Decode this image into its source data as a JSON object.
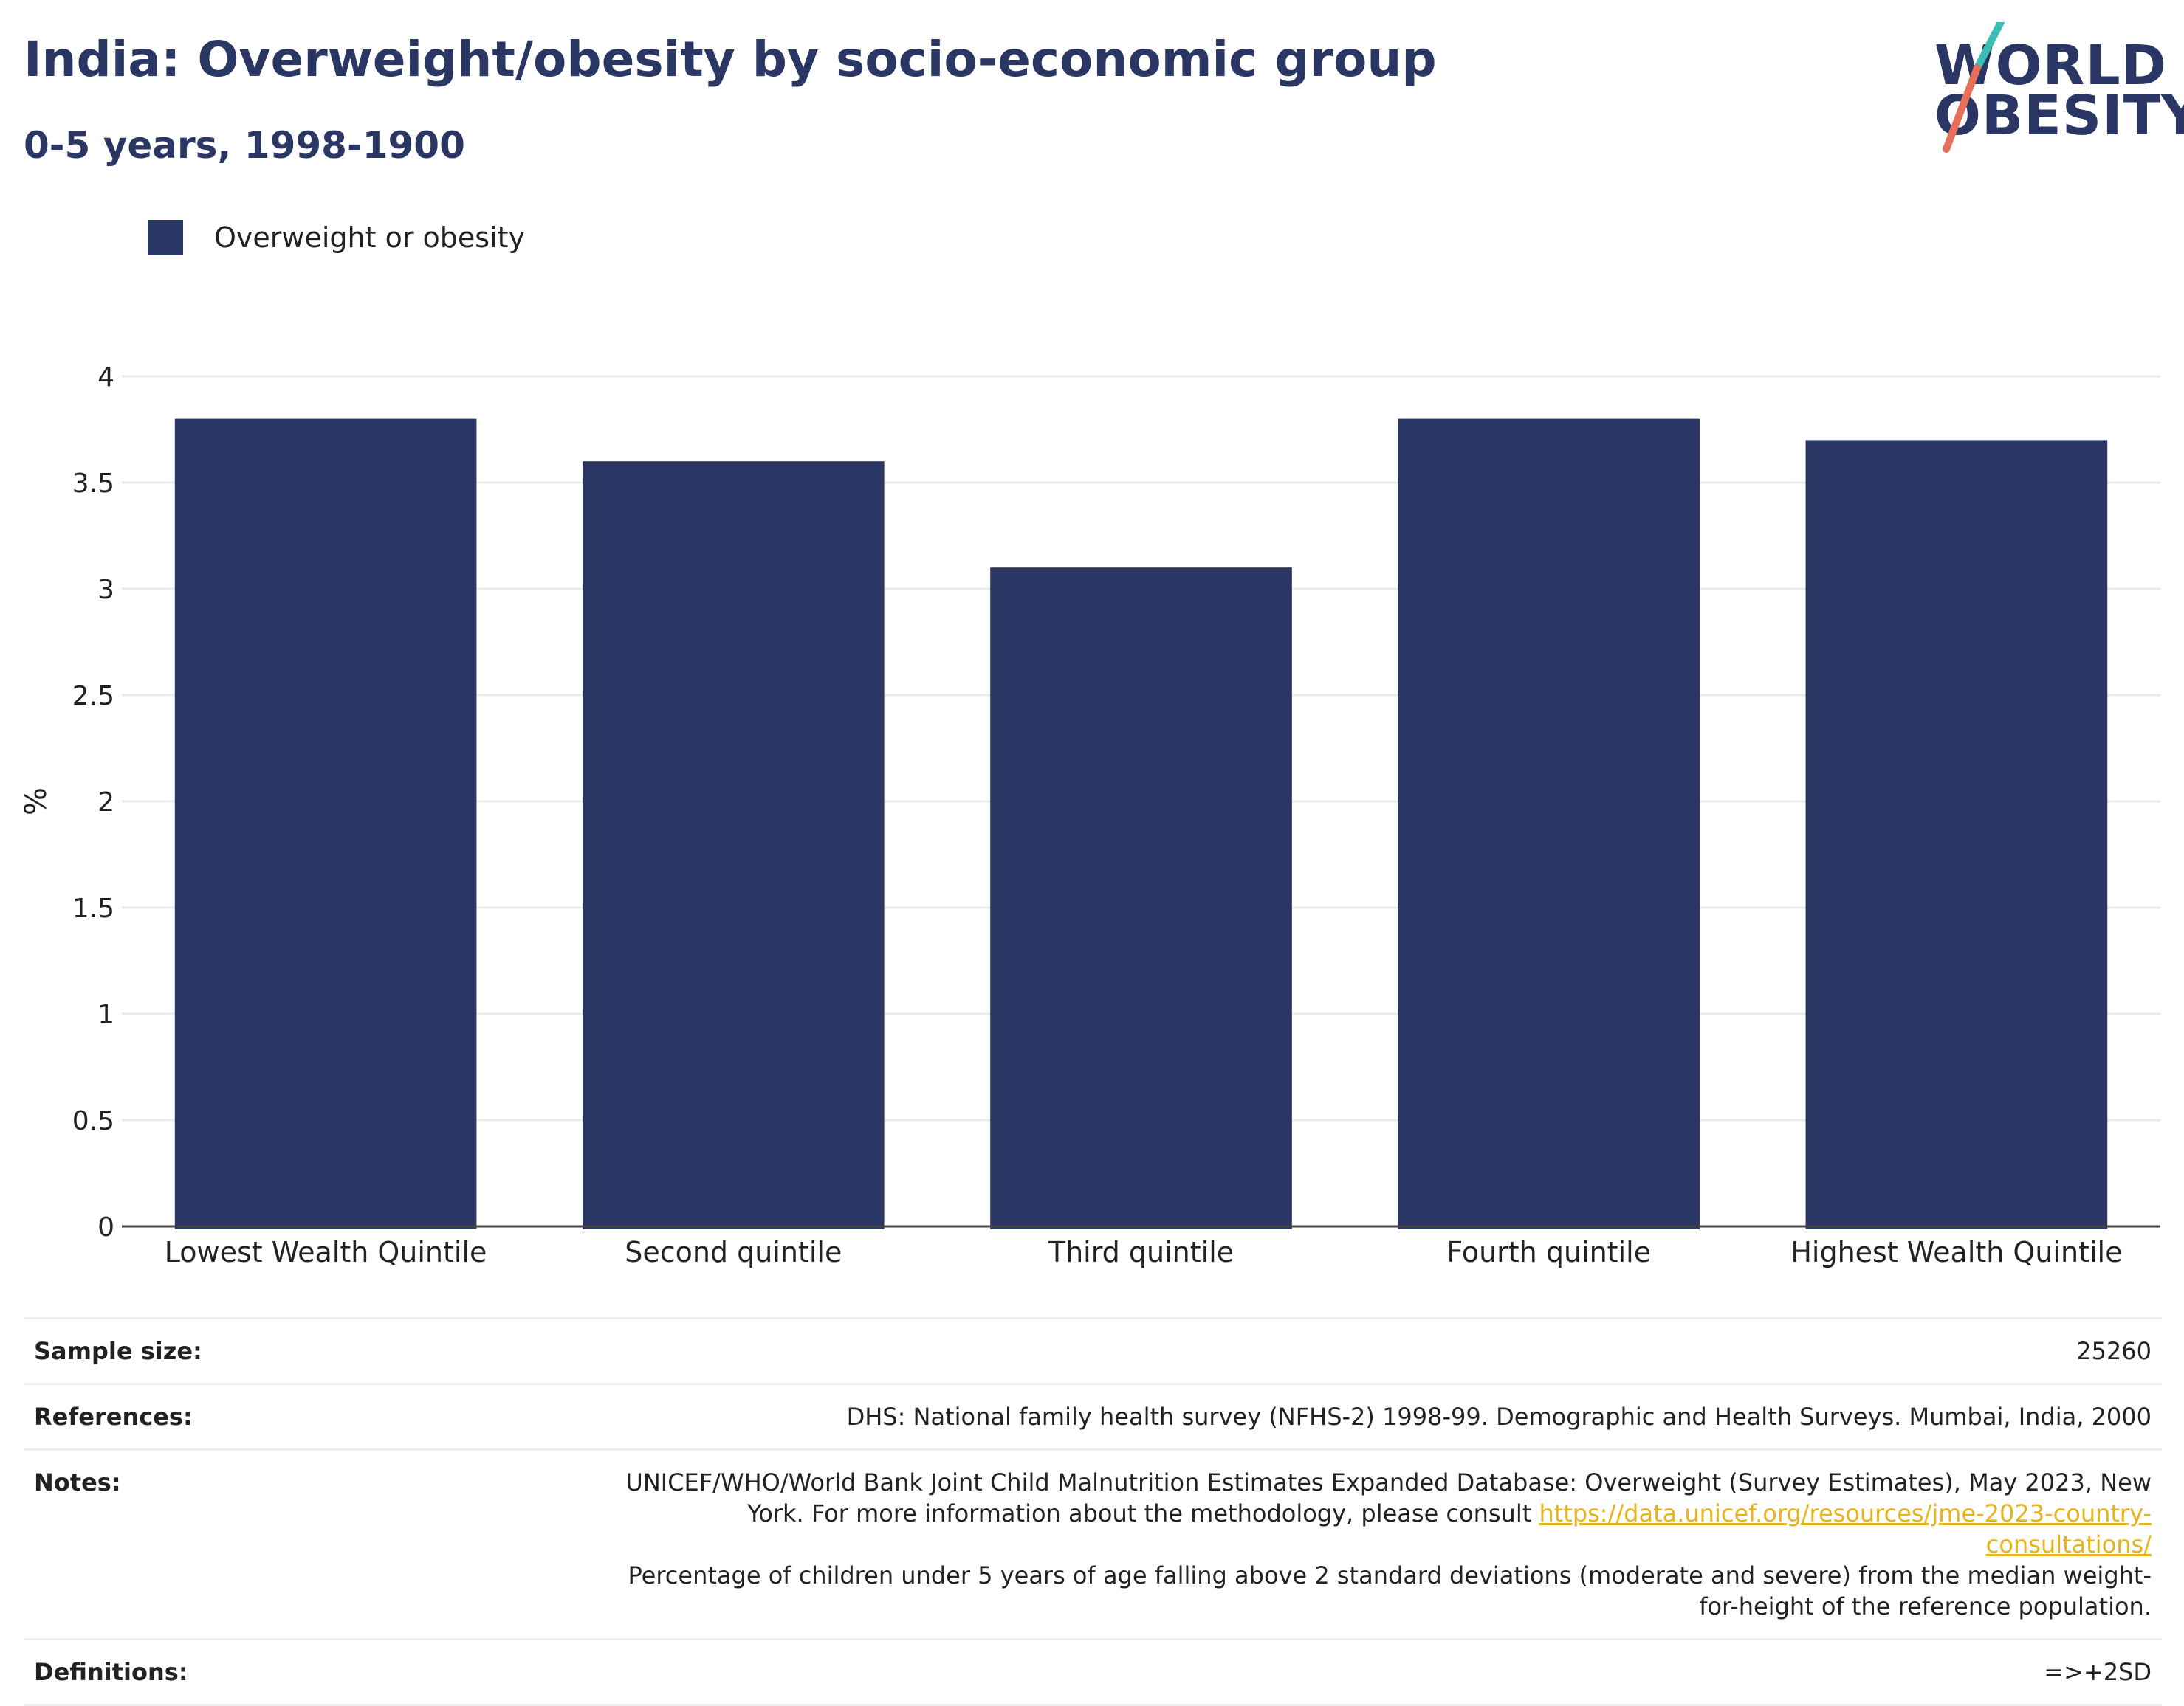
{
  "header": {
    "title": "India: Overweight/obesity by socio-economic group",
    "subtitle": "0-5 years, 1998-1900"
  },
  "logo": {
    "line1": "WORLD",
    "line2": "OBESITY",
    "accent_top": "#3bbfb5",
    "accent_bottom": "#e8705a"
  },
  "legend": {
    "label": "Overweight or obesity",
    "color": "#2a3663"
  },
  "chart_data": {
    "type": "bar",
    "categories": [
      "Lowest Wealth Quintile",
      "Second quintile",
      "Third quintile",
      "Fourth quintile",
      "Highest Wealth Quintile"
    ],
    "series": [
      {
        "name": "Overweight or obesity",
        "values": [
          3.8,
          3.6,
          3.1,
          3.8,
          3.7
        ],
        "color": "#2a3663"
      }
    ],
    "ylabel": "%",
    "ylim": [
      0,
      4
    ],
    "yticks": [
      0,
      0.5,
      1,
      1.5,
      2,
      2.5,
      3,
      3.5,
      4
    ],
    "ytick_labels": [
      "0",
      "0.5",
      "1",
      "1.5",
      "2",
      "2.5",
      "3",
      "3.5",
      "4"
    ],
    "grid": true,
    "legend_position": "top-left"
  },
  "info": {
    "sample_size_label": "Sample size:",
    "sample_size_value": "25260",
    "references_label": "References:",
    "references_value": "DHS: National family health survey (NFHS-2) 1998-99. Demographic and Health Surveys. Mumbai, India, 2000",
    "notes_label": "Notes:",
    "notes_text_1": "UNICEF/WHO/World Bank Joint Child Malnutrition Estimates Expanded Database: Overweight (Survey Estimates), May 2023, New York. For more information about the methodology, please consult",
    "notes_link": "https://data.unicef.org/resources/jme-2023-country-consultations/",
    "notes_text_2": "Percentage of children under 5 years of age falling above 2 standard deviations (moderate and severe) from the median weight-for-height of the reference population.",
    "definitions_label": "Definitions:",
    "definitions_value": "=>+2SD"
  }
}
